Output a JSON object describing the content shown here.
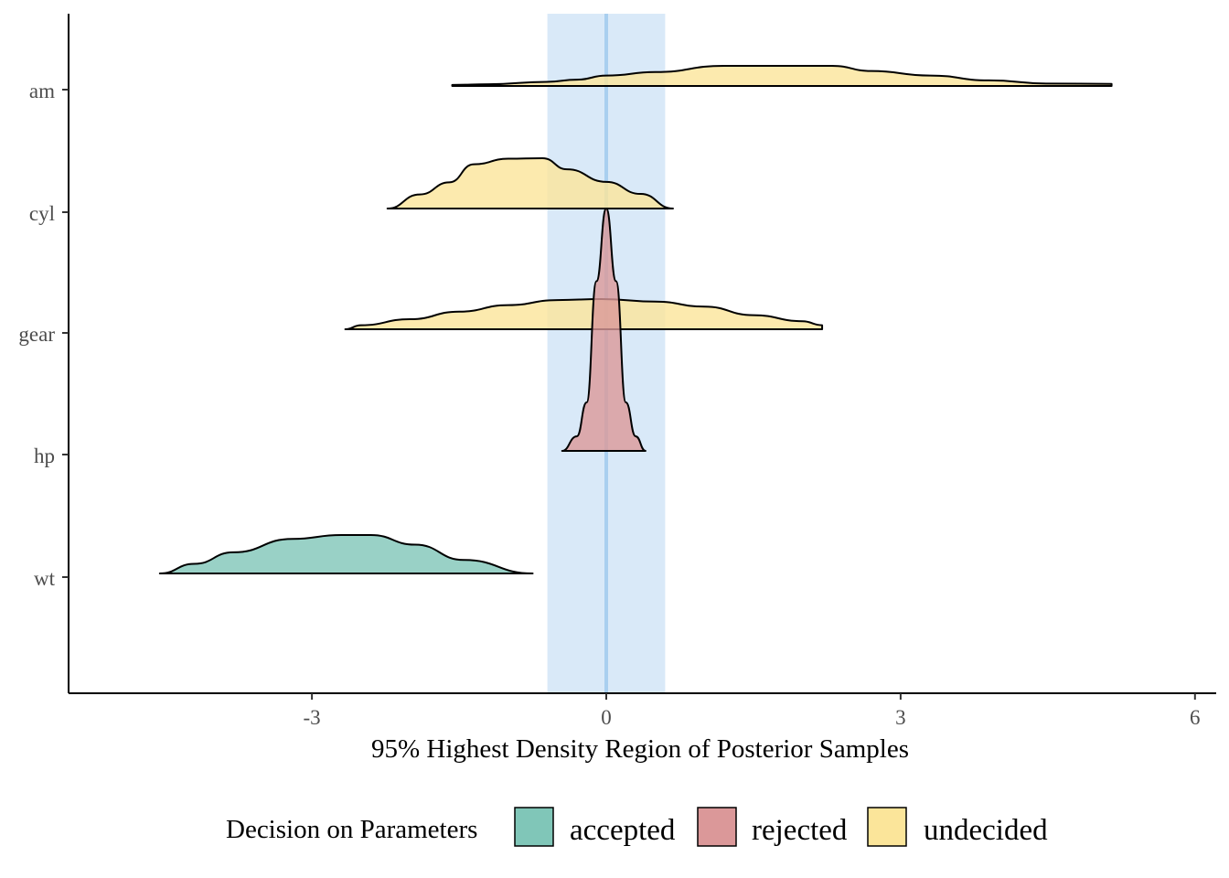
{
  "chart_data": {
    "type": "ridgeline-density",
    "title": "",
    "xlabel": "95% Highest Density Region of Posterior Samples",
    "ylabel": "",
    "x_ticks": [
      -3,
      0,
      3,
      6
    ],
    "x_tick_labels": [
      "-3",
      "0",
      "3",
      "6"
    ],
    "xlim": [
      -5.47,
      6.2
    ],
    "rope_interval": [
      -0.6,
      0.6
    ],
    "reference_line": 0,
    "grid": false,
    "legend": {
      "title": "Decision on Parameters",
      "position": "bottom",
      "entries": [
        {
          "label": "accepted",
          "color": "#80c6b8"
        },
        {
          "label": "rejected",
          "color": "#db9899"
        },
        {
          "label": "undecided",
          "color": "#fbe59a"
        }
      ]
    },
    "series": [
      {
        "parameter": "am",
        "decision": "undecided",
        "points": [
          [
            -1.57,
            0.03
          ],
          [
            -1.2,
            0.05
          ],
          [
            -0.6,
            0.12
          ],
          [
            -0.3,
            0.18
          ],
          [
            0.0,
            0.3
          ],
          [
            0.5,
            0.4
          ],
          [
            1.2,
            0.58
          ],
          [
            1.8,
            0.58
          ],
          [
            2.3,
            0.58
          ],
          [
            2.7,
            0.43
          ],
          [
            3.3,
            0.3
          ],
          [
            3.9,
            0.16
          ],
          [
            4.5,
            0.07
          ],
          [
            5.15,
            0.06
          ]
        ]
      },
      {
        "parameter": "cyl",
        "decision": "undecided",
        "points": [
          [
            -2.23,
            0.0
          ],
          [
            -1.9,
            0.28
          ],
          [
            -1.6,
            0.52
          ],
          [
            -1.35,
            0.88
          ],
          [
            -1.0,
            0.99
          ],
          [
            -0.65,
            1.0
          ],
          [
            -0.4,
            0.78
          ],
          [
            0.0,
            0.53
          ],
          [
            0.35,
            0.29
          ],
          [
            0.68,
            0.0
          ]
        ]
      },
      {
        "parameter": "gear",
        "decision": "undecided",
        "points": [
          [
            -2.66,
            0.0
          ],
          [
            -2.5,
            0.08
          ],
          [
            -2.0,
            0.2
          ],
          [
            -1.5,
            0.35
          ],
          [
            -1.0,
            0.48
          ],
          [
            -0.5,
            0.58
          ],
          [
            -0.05,
            0.6
          ],
          [
            0.5,
            0.55
          ],
          [
            1.0,
            0.45
          ],
          [
            1.5,
            0.28
          ],
          [
            2.0,
            0.16
          ],
          [
            2.2,
            0.08
          ]
        ]
      },
      {
        "parameter": "hp",
        "decision": "rejected",
        "points": [
          [
            -0.45,
            0.0
          ],
          [
            -0.3,
            0.3
          ],
          [
            -0.2,
            1.0
          ],
          [
            -0.1,
            3.5
          ],
          [
            0.0,
            5.0
          ],
          [
            0.1,
            3.5
          ],
          [
            0.2,
            1.0
          ],
          [
            0.3,
            0.3
          ],
          [
            0.4,
            0.0
          ]
        ]
      },
      {
        "parameter": "wt",
        "decision": "accepted",
        "points": [
          [
            -4.55,
            0.0
          ],
          [
            -4.2,
            0.25
          ],
          [
            -3.8,
            0.55
          ],
          [
            -3.2,
            0.9
          ],
          [
            -2.7,
            1.0
          ],
          [
            -2.4,
            1.0
          ],
          [
            -1.95,
            0.75
          ],
          [
            -1.45,
            0.35
          ],
          [
            -0.75,
            0.0
          ]
        ]
      }
    ]
  }
}
